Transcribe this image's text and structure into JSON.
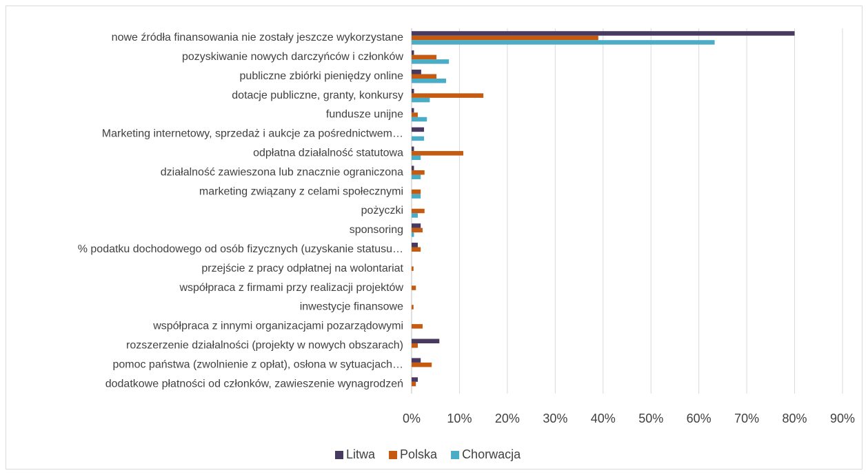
{
  "chart_data": {
    "type": "bar",
    "orientation": "horizontal",
    "categories": [
      "nowe źródła finansowania nie zostały jeszcze wykorzystane",
      "pozyskiwanie nowych darczyńców i członków",
      "publiczne zbiórki pieniędzy online",
      "dotacje publiczne, granty, konkursy",
      "fundusze unijne",
      "Marketing internetowy, sprzedaż i aukcje za pośrednictwem…",
      "odpłatna działalność statutowa",
      "działalność zawieszona lub znacznie ograniczona",
      "marketing związany z celami społecznymi",
      "pożyczki",
      "sponsoring",
      "% podatku dochodowego od osób fizycznych (uzyskanie statusu…",
      "przejście z pracy odpłatnej na wolontariat",
      "współpraca z firmami przy realizacji projektów",
      "inwestycje finansowe",
      "współpraca z innymi organizacjami pozarządowymi",
      "rozszerzenie działalności (projekty w nowych obszarach)",
      "pomoc państwa (zwolnienie z opłat), osłona w sytuacjach…",
      "dodatkowe płatności od członków, zawieszenie wynagrodzeń"
    ],
    "series": [
      {
        "name": "Litwa",
        "color": "#47395f",
        "values": [
          80,
          0.5,
          2,
          0.5,
          0.5,
          2.6,
          0.5,
          0.5,
          0,
          0,
          1.9,
          1.3,
          0,
          0,
          0,
          0,
          5.8,
          1.9,
          1.3
        ]
      },
      {
        "name": "Polska",
        "color": "#c55a11",
        "values": [
          39,
          5.2,
          5.2,
          15,
          1.3,
          0,
          10.8,
          2.7,
          1.9,
          2.7,
          2.3,
          1.9,
          0.4,
          0.9,
          0.4,
          2.3,
          1.3,
          4.2,
          0.9
        ]
      },
      {
        "name": "Chorwacja",
        "color": "#4bacc6",
        "values": [
          63.3,
          7.8,
          7.2,
          3.8,
          3.2,
          2.6,
          1.9,
          1.9,
          1.9,
          1.3,
          0.5,
          0,
          0,
          0,
          0,
          0,
          0,
          0,
          0
        ]
      }
    ],
    "xlim": [
      0,
      90
    ],
    "xticks": [
      {
        "value": 0,
        "label": "0%"
      },
      {
        "value": 10,
        "label": "10%"
      },
      {
        "value": 20,
        "label": "20%"
      },
      {
        "value": 30,
        "label": "30%"
      },
      {
        "value": 40,
        "label": "40%"
      },
      {
        "value": 50,
        "label": "50%"
      },
      {
        "value": 60,
        "label": "60%"
      },
      {
        "value": 70,
        "label": "70%"
      },
      {
        "value": 80,
        "label": "80%"
      },
      {
        "value": 90,
        "label": "90%"
      }
    ],
    "grid": true,
    "legend": "bottom"
  }
}
